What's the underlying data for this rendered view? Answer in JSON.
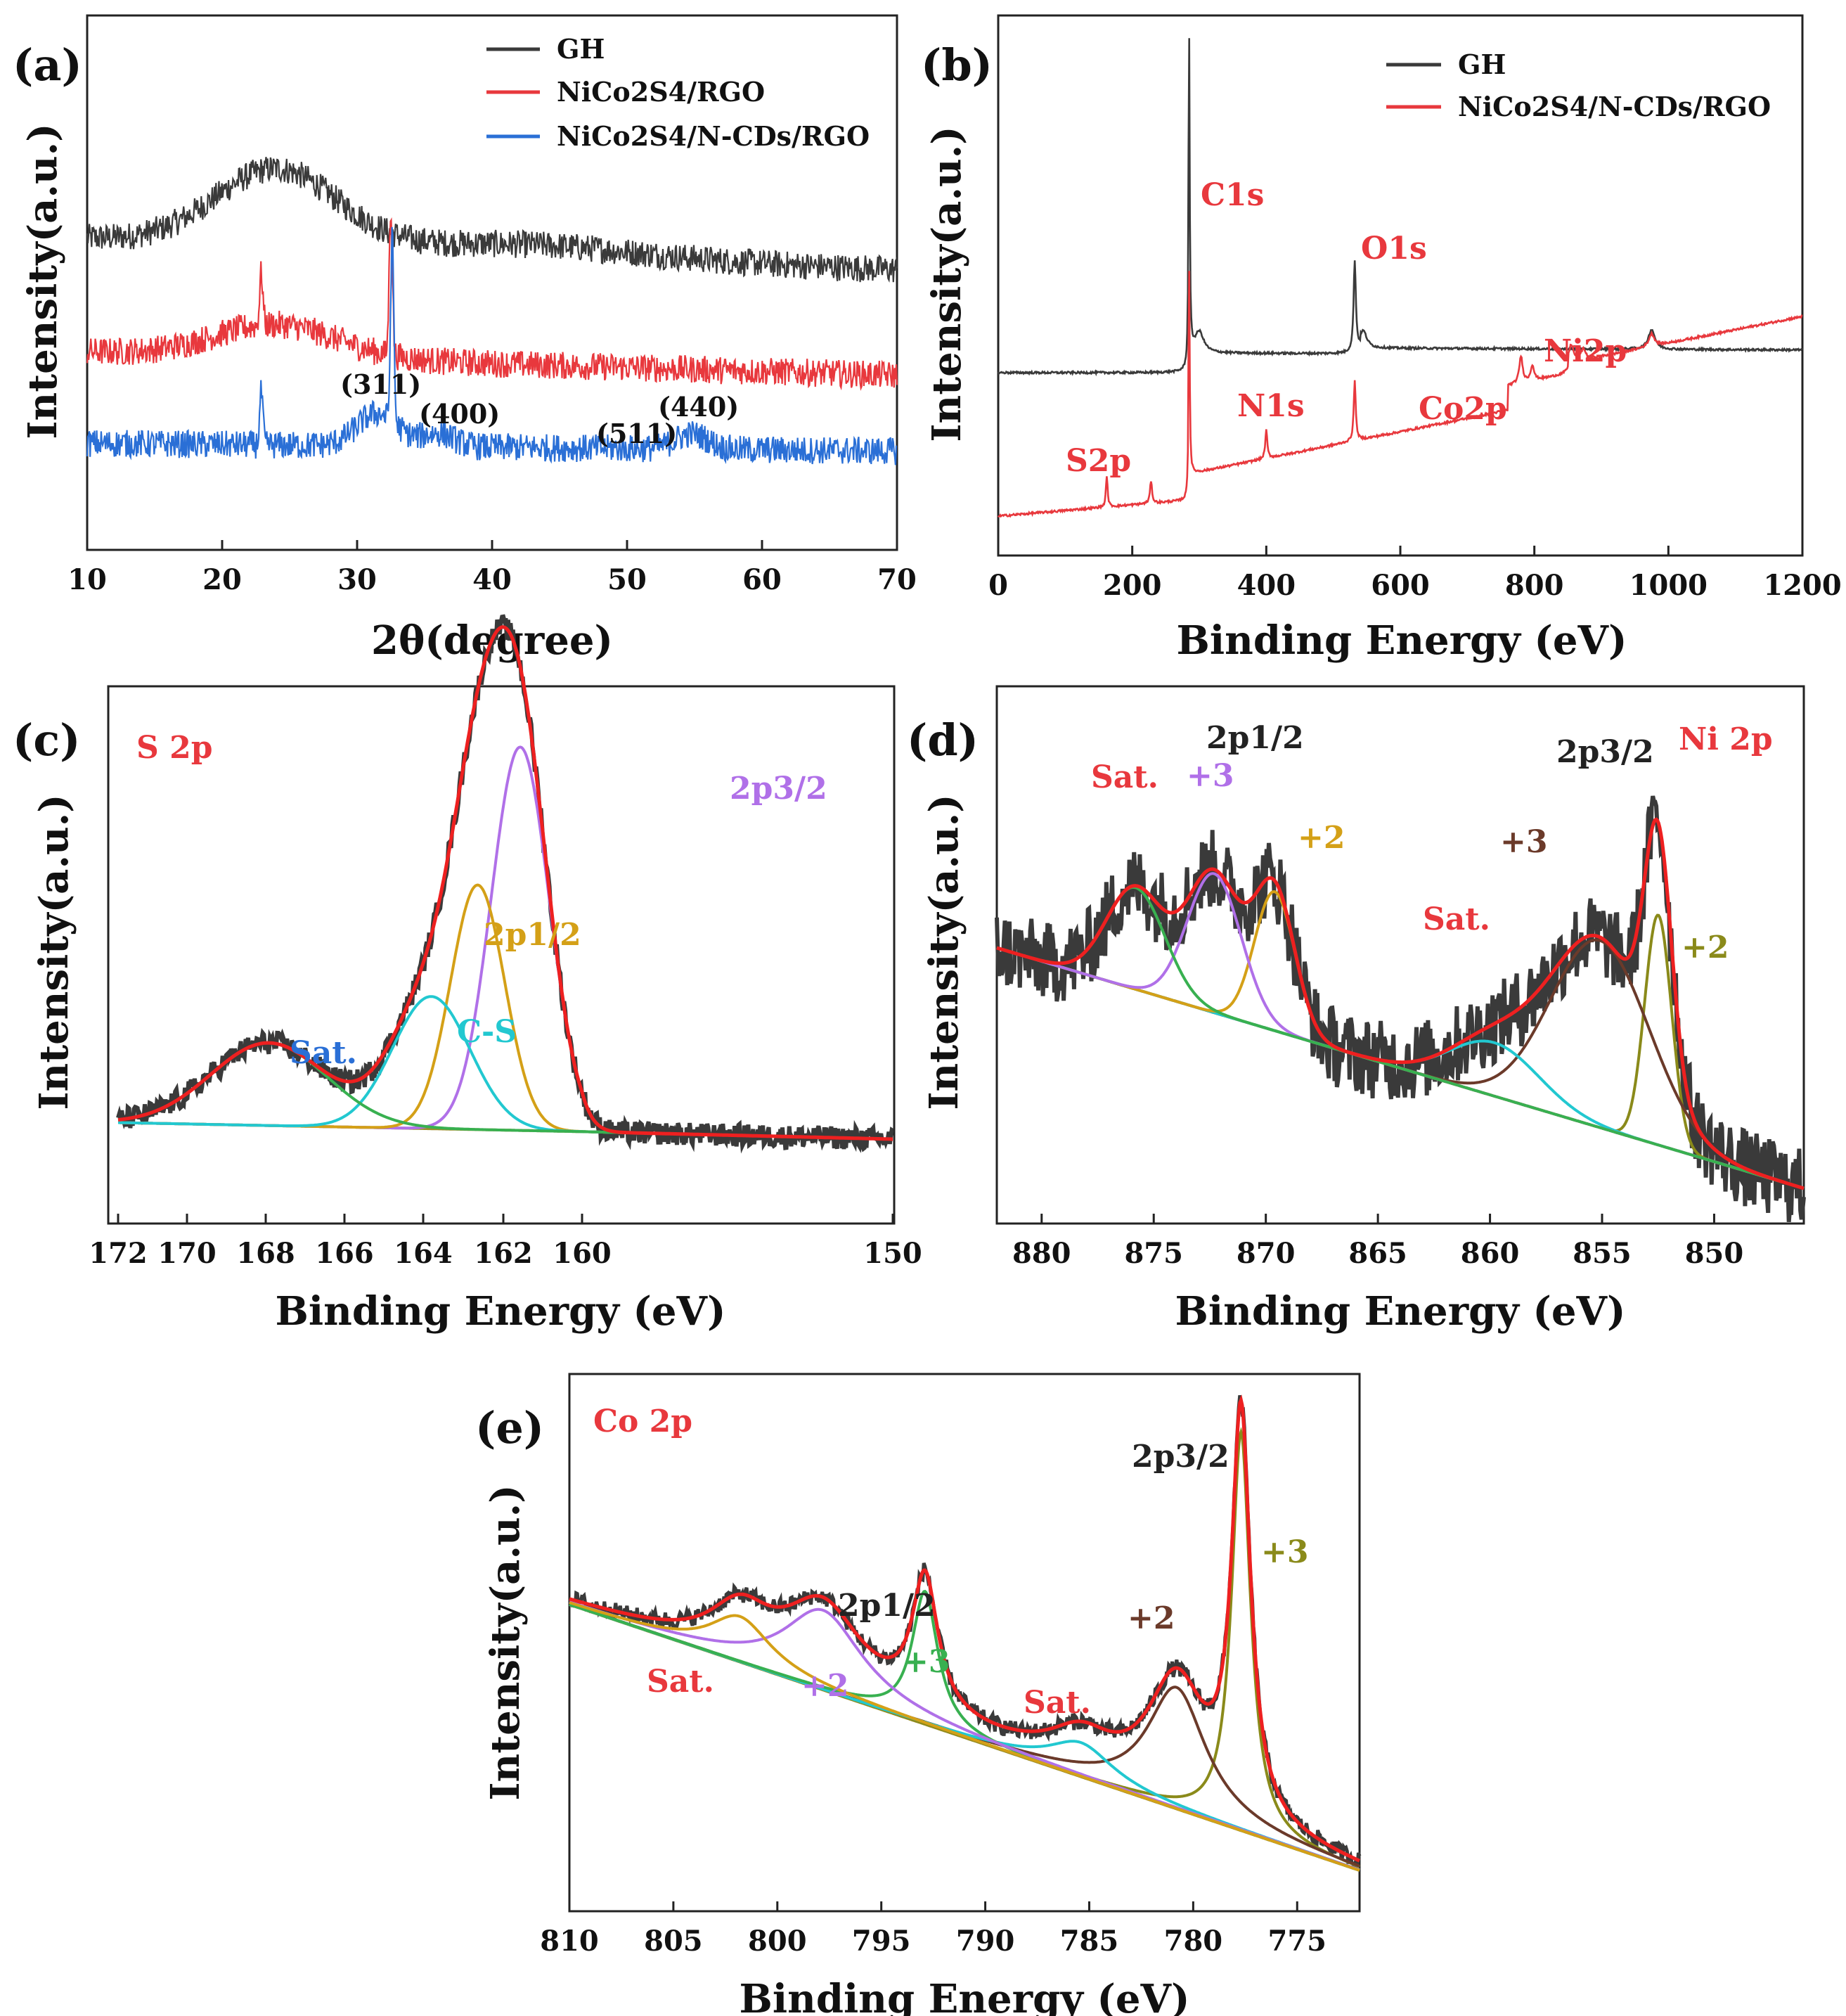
{
  "colors": {
    "raw": "#3a3a3a",
    "envelope": "#ee2020",
    "red": "#e8383d",
    "blue": "#2a6fd6",
    "purple": "#b070e8",
    "gold": "#d4a017",
    "cyan": "#22c8d0",
    "green": "#38b050",
    "brown": "#6b3a2a",
    "olive": "#8a8a1a",
    "baseline": "#9a8e2a",
    "dark": "#222222"
  },
  "chart_data": [
    {
      "panel": "(a)",
      "type": "line",
      "xlabel": "2θ(degree)",
      "ylabel": "Intensity(a.u.)",
      "xlim": [
        10,
        70
      ],
      "xticks": [
        "10",
        "20",
        "30",
        "40",
        "50",
        "60",
        "70"
      ],
      "series": [
        {
          "name": "GH",
          "color": "#3a3a3a",
          "baseline": 6.5,
          "components": [
            {
              "center": 24,
              "width": 4.5,
              "height": 1.75
            },
            {
              "center": 43,
              "width": 8,
              "height": 0.25
            }
          ],
          "slope": -0.012,
          "noise": 0.32,
          "peaks": []
        },
        {
          "name": "NiCo2S4/RGO",
          "color": "#e8383d",
          "baseline": 3.9,
          "components": [
            {
              "center": 24,
              "width": 4.5,
              "height": 0.75
            }
          ],
          "slope": -0.009,
          "noise": 0.32,
          "peaks": [
            {
              "x": 22.9,
              "h": 1.2
            },
            {
              "x": 32.5,
              "h": 3.4
            }
          ]
        },
        {
          "name": "NiCo2S4/N-CDs/RGO",
          "color": "#2a6fd6",
          "baseline": 1.8,
          "components": [
            {
              "center": 31.5,
              "width": 1.5,
              "height": 0.75
            },
            {
              "center": 36,
              "width": 1.2,
              "height": 0.3
            },
            {
              "center": 54.8,
              "width": 1.2,
              "height": 0.35
            }
          ],
          "slope": -0.003,
          "noise": 0.32,
          "peaks": [
            {
              "x": 22.9,
              "h": 1.2
            },
            {
              "x": 32.6,
              "h": 4.2
            }
          ]
        }
      ],
      "legend": [
        "GH",
        "NiCo2S4/RGO",
        "NiCo2S4/N-CDs/RGO"
      ],
      "annotations": [
        "(311)",
        "(400)",
        "(511)",
        "(440)"
      ]
    },
    {
      "panel": "(b)",
      "type": "line",
      "xlabel": "Binding Energy (eV)",
      "ylabel": "Intensity(a.u.)",
      "xlim": [
        0,
        1200
      ],
      "xticks": [
        "0",
        "200",
        "400",
        "600",
        "800",
        "1000",
        "1200"
      ],
      "series": [
        {
          "name": "GH",
          "color": "#3a3a3a",
          "peaks_eV": [
            284.8,
            532,
            975
          ]
        },
        {
          "name": "NiCo2S4/N-CDs/RGO",
          "color": "#e8383d",
          "peaks_eV": [
            162,
            228,
            284.8,
            400,
            532,
            780,
            797,
            855,
            873
          ]
        }
      ],
      "legend": [
        "GH",
        "NiCo2S4/N-CDs/RGO"
      ],
      "annotations": [
        "C1s",
        "O1s",
        "Ni2p",
        "N1s",
        "Co2p",
        "S2p"
      ]
    },
    {
      "panel": "(c)",
      "type": "line",
      "title": "S 2p",
      "xlabel": "Binding Energy (eV)",
      "ylabel": "Intensity(a.u.)",
      "xlim": [
        172,
        150
      ],
      "xticks": [
        "172",
        "170",
        "168",
        "166",
        "164",
        "162",
        "160",
        "150"
      ],
      "components": [
        {
          "name": "2p3/2",
          "center": 161.6,
          "width": 0.75,
          "height": 5.8,
          "color": "#b070e8"
        },
        {
          "name": "2p1/2",
          "center": 162.7,
          "width": 0.7,
          "height": 3.7,
          "color": "#d4a017"
        },
        {
          "name": "C-S",
          "center": 163.9,
          "width": 1.0,
          "height": 2.0,
          "color": "#22c8d0"
        },
        {
          "name": "Sat.",
          "center": 168.1,
          "width": 1.5,
          "height": 1.25,
          "color": "#38b050"
        }
      ],
      "background": {
        "left": 0.25,
        "right": 0.0
      },
      "annotations": [
        "Sat.",
        "C-S",
        "2p1/2",
        "2p3/2"
      ]
    },
    {
      "panel": "(d)",
      "type": "line",
      "title": "Ni 2p",
      "xlabel": "Binding Energy (eV)",
      "ylabel": "Intensity(a.u.)",
      "xlim": [
        882,
        846
      ],
      "xticks": [
        "880",
        "875",
        "870",
        "865",
        "860",
        "855",
        "850"
      ],
      "components": [
        {
          "name": "+2 (2p3/2)",
          "center": 852.5,
          "width": 0.6,
          "height": 4.3,
          "color": "#8a8a1a"
        },
        {
          "name": "+3 (2p3/2)",
          "center": 855.1,
          "width": 2.2,
          "height": 3.5,
          "color": "#6b3a2a"
        },
        {
          "name": "Sat.",
          "center": 859.8,
          "width": 2.0,
          "height": 1.0,
          "color": "#22c8d0"
        },
        {
          "name": "+2 (2p1/2)",
          "center": 869.6,
          "width": 0.9,
          "height": 2.6,
          "color": "#d4a017"
        },
        {
          "name": "+3 (2p1/2)",
          "center": 872.3,
          "width": 1.2,
          "height": 2.6,
          "color": "#b070e8"
        },
        {
          "name": "Sat.",
          "center": 875.8,
          "width": 1.3,
          "height": 1.9,
          "color": "#38b050"
        }
      ],
      "background": {
        "left": 4.5,
        "right": 0.0
      },
      "annotations": [
        "Sat.",
        "+3",
        "2p1/2",
        "+2",
        "2p3/2",
        "+3",
        "Sat.",
        "+2"
      ]
    },
    {
      "panel": "(e)",
      "type": "line",
      "title": "Co 2p",
      "xlabel": "Binding Energy (eV)",
      "ylabel": "Intensity(a.u.)",
      "xlim": [
        810,
        772
      ],
      "xticks": [
        "810",
        "805",
        "800",
        "795",
        "790",
        "785",
        "780",
        "775"
      ],
      "components": [
        {
          "name": "+3 (2p3/2)",
          "center": 777.7,
          "width": 0.55,
          "height": 10.5,
          "color": "#8a8a1a"
        },
        {
          "name": "+2 (2p3/2)",
          "center": 780.8,
          "width": 1.7,
          "height": 3.2,
          "color": "#6b3a2a"
        },
        {
          "name": "Sat.",
          "center": 785.4,
          "width": 1.9,
          "height": 0.9,
          "color": "#22c8d0"
        },
        {
          "name": "+3 (2p1/2)",
          "center": 792.9,
          "width": 0.75,
          "height": 3.5,
          "color": "#38b050"
        },
        {
          "name": "+2 (2p1/2)",
          "center": 797.8,
          "width": 2.3,
          "height": 2.1,
          "color": "#b070e8"
        },
        {
          "name": "Sat.",
          "center": 801.8,
          "width": 1.8,
          "height": 1.2,
          "color": "#d4a017"
        }
      ],
      "background": {
        "left": 7.0,
        "right": 0.0
      },
      "annotations": [
        "Sat.",
        "+2",
        "+3",
        "2p1/2",
        "Sat.",
        "+2",
        "2p3/2",
        "+3"
      ]
    }
  ]
}
